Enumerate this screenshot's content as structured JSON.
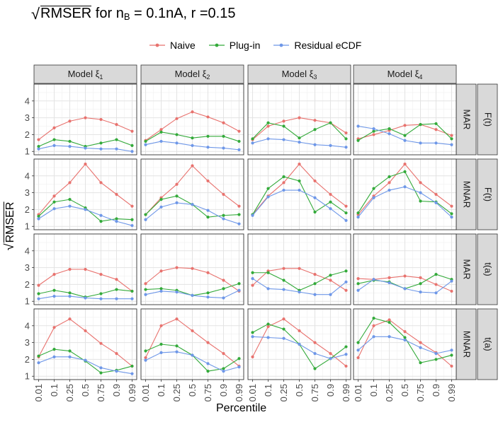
{
  "chart_data": {
    "type": "line",
    "title": {
      "prefix": "RMSER",
      "middle": " for n",
      "sub": "B",
      "suffix": " = 0.1nA, r =0.15"
    },
    "xlabel": "Percentile",
    "ylabel": "RMSER",
    "x_ticks": [
      "0.01",
      "0.1",
      "0.25",
      "0.5",
      "0.75",
      "0.9",
      "0.99"
    ],
    "y_ticks": [
      1,
      2,
      3,
      4
    ],
    "ylim": [
      0.8,
      5.0
    ],
    "grid": true,
    "legend_position": "top",
    "series": [
      {
        "name": "Naive",
        "color": "#E8726E"
      },
      {
        "name": "Plug-in",
        "color": "#33AA3A"
      },
      {
        "name": "Residual eCDF",
        "color": "#6E97E8"
      }
    ],
    "columns": [
      {
        "label": "Model ",
        "sub": "1"
      },
      {
        "label": "Model ",
        "sub": "2"
      },
      {
        "label": "Model ",
        "sub": "3"
      },
      {
        "label": "Model ",
        "sub": "4"
      }
    ],
    "rows": [
      {
        "label": "MAR",
        "outer": "F(t)"
      },
      {
        "label": "MNAR",
        "outer": "F(t)"
      },
      {
        "label": "MAR",
        "outer": "t(a)"
      },
      {
        "label": "MNAR",
        "outer": "t(a)"
      }
    ],
    "panels": [
      [
        [
          [
            1.7,
            2.4,
            2.8,
            3.0,
            2.9,
            2.6,
            2.2
          ],
          [
            1.3,
            1.7,
            1.6,
            1.3,
            1.5,
            1.7,
            1.35
          ],
          [
            1.15,
            1.35,
            1.3,
            1.2,
            1.15,
            1.15,
            1.0
          ]
        ],
        [
          [
            1.65,
            2.3,
            2.95,
            3.35,
            3.05,
            2.7,
            2.2
          ],
          [
            1.6,
            2.15,
            2.0,
            1.8,
            1.9,
            1.9,
            1.6
          ],
          [
            1.4,
            1.6,
            1.5,
            1.35,
            1.25,
            1.2,
            1.1
          ]
        ],
        [
          [
            1.7,
            2.5,
            2.8,
            3.0,
            2.85,
            2.7,
            2.1
          ],
          [
            1.75,
            2.7,
            2.5,
            1.8,
            2.3,
            2.7,
            1.75
          ],
          [
            1.5,
            1.75,
            1.7,
            1.55,
            1.4,
            1.35,
            1.25
          ]
        ],
        [
          [
            1.75,
            2.0,
            2.25,
            2.55,
            2.6,
            2.3,
            1.95
          ],
          [
            1.65,
            2.2,
            2.35,
            1.95,
            2.6,
            2.65,
            1.75
          ],
          [
            2.5,
            2.35,
            2.05,
            1.65,
            1.5,
            1.5,
            1.4
          ]
        ]
      ],
      [
        [
          [
            1.7,
            2.8,
            3.6,
            4.7,
            3.6,
            2.9,
            2.2
          ],
          [
            1.6,
            2.45,
            2.6,
            2.1,
            1.3,
            1.45,
            1.4
          ],
          [
            1.45,
            2.05,
            2.2,
            2.0,
            1.65,
            1.3,
            1.05
          ]
        ],
        [
          [
            1.7,
            2.7,
            3.5,
            4.6,
            3.7,
            2.9,
            2.2
          ],
          [
            1.7,
            2.6,
            2.8,
            2.3,
            1.55,
            1.65,
            1.7
          ],
          [
            1.4,
            2.15,
            2.4,
            2.3,
            1.95,
            1.45,
            1.15
          ]
        ],
        [
          [
            1.7,
            2.8,
            3.6,
            4.7,
            3.7,
            2.9,
            2.2
          ],
          [
            1.7,
            3.25,
            3.95,
            3.7,
            1.85,
            2.45,
            1.8
          ],
          [
            1.65,
            2.75,
            3.15,
            3.15,
            2.7,
            2.05,
            1.35
          ]
        ],
        [
          [
            1.7,
            2.8,
            3.6,
            4.7,
            3.6,
            2.9,
            2.2
          ],
          [
            1.8,
            3.25,
            3.95,
            4.25,
            2.5,
            2.45,
            1.75
          ],
          [
            1.55,
            2.7,
            3.15,
            3.35,
            3.0,
            2.4,
            1.55
          ]
        ]
      ],
      [
        [
          [
            1.95,
            2.6,
            2.9,
            2.9,
            2.6,
            2.3,
            1.6
          ],
          [
            1.45,
            1.65,
            1.5,
            1.25,
            1.45,
            1.7,
            1.6
          ],
          [
            1.15,
            1.3,
            1.3,
            1.2,
            1.15,
            1.15,
            1.15
          ]
        ],
        [
          [
            2.05,
            2.8,
            3.0,
            2.95,
            2.7,
            2.25,
            1.6
          ],
          [
            1.7,
            1.75,
            1.65,
            1.35,
            1.5,
            1.75,
            2.05
          ],
          [
            1.4,
            1.6,
            1.55,
            1.35,
            1.25,
            1.2,
            1.65
          ]
        ],
        [
          [
            1.95,
            2.8,
            2.95,
            2.95,
            2.6,
            2.25,
            1.65
          ],
          [
            2.7,
            2.7,
            2.25,
            1.65,
            2.05,
            2.55,
            2.8
          ],
          [
            2.35,
            1.75,
            1.7,
            1.55,
            1.4,
            1.4,
            2.15
          ]
        ],
        [
          [
            2.35,
            2.3,
            2.4,
            2.5,
            2.4,
            2.0,
            1.6
          ],
          [
            2.05,
            2.25,
            2.15,
            1.75,
            2.05,
            2.6,
            2.3
          ],
          [
            1.65,
            2.3,
            2.1,
            1.75,
            1.55,
            1.5,
            2.2
          ]
        ]
      ],
      [
        [
          [
            2.15,
            3.9,
            4.4,
            3.7,
            2.95,
            2.35,
            1.6
          ],
          [
            2.2,
            2.6,
            2.5,
            1.9,
            1.2,
            1.35,
            1.6
          ],
          [
            1.8,
            2.15,
            2.15,
            1.95,
            1.5,
            1.3,
            1.15
          ]
        ],
        [
          [
            2.1,
            4.0,
            4.4,
            3.7,
            3.0,
            2.35,
            1.6
          ],
          [
            2.5,
            2.9,
            2.8,
            2.25,
            1.3,
            1.45,
            2.05
          ],
          [
            1.95,
            2.4,
            2.45,
            2.25,
            1.75,
            1.3,
            1.55
          ]
        ],
        [
          [
            2.15,
            3.95,
            4.4,
            3.7,
            3.0,
            2.35,
            1.6
          ],
          [
            3.6,
            4.1,
            3.8,
            2.9,
            1.45,
            2.05,
            2.75
          ],
          [
            3.35,
            3.3,
            3.25,
            2.9,
            2.35,
            2.05,
            2.3
          ]
        ],
        [
          [
            2.1,
            4.0,
            4.35,
            3.65,
            3.0,
            2.4,
            1.6
          ],
          [
            3.0,
            4.45,
            4.2,
            3.3,
            1.8,
            2.0,
            2.25
          ],
          [
            2.55,
            3.35,
            3.35,
            3.15,
            2.7,
            2.35,
            2.55
          ]
        ]
      ]
    ]
  }
}
